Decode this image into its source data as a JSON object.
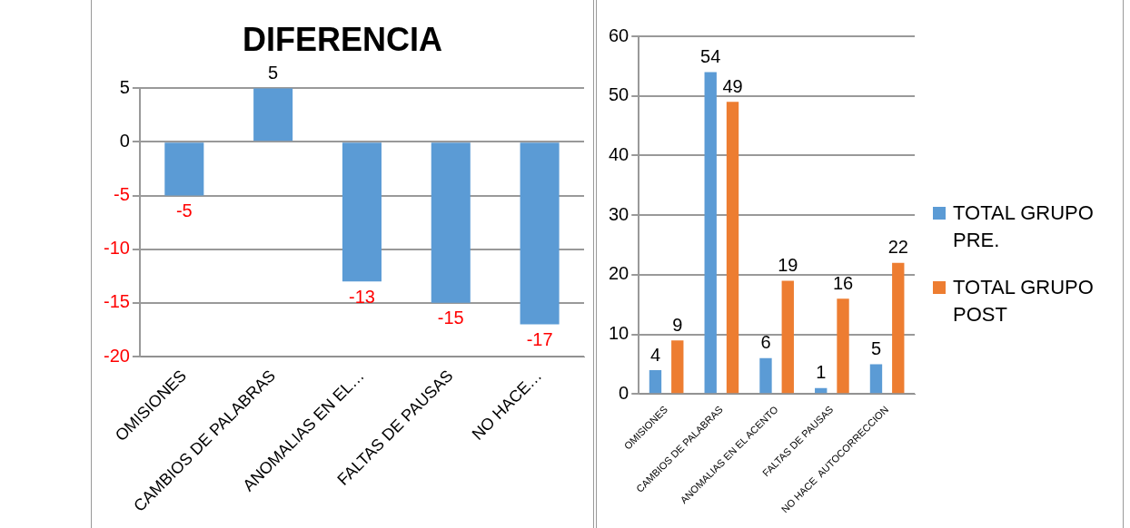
{
  "chart_data": [
    {
      "type": "bar",
      "title": "DIFERENCIA",
      "categories": [
        "OMISIONES",
        "CAMBIOS DE PALABRAS",
        "ANOMALIAS EN EL…",
        "FALTAS DE PAUSAS",
        "NO HACE…"
      ],
      "series": [
        {
          "color": "#5b9bd5",
          "values": [
            -5,
            5,
            -13,
            -15,
            -17
          ]
        }
      ],
      "ylim": [
        -20,
        5
      ],
      "yticks": [
        -20,
        -15,
        -10,
        -5,
        0,
        5
      ],
      "grid": "y",
      "legend": false,
      "data_labels": true
    },
    {
      "type": "bar",
      "categories": [
        "OMISIONES",
        "CAMBIOS DE PALABRAS",
        "ANOMALIAS EN EL ACENTO",
        "FALTAS DE PAUSAS",
        "NO HACE  AUTOCORRECCION"
      ],
      "series": [
        {
          "name": "TOTAL GRUPO PRE.",
          "color": "#5b9bd5",
          "values": [
            4,
            54,
            6,
            1,
            5
          ]
        },
        {
          "name": "TOTAL GRUPO POST",
          "color": "#ed7d31",
          "values": [
            9,
            49,
            19,
            16,
            22
          ]
        }
      ],
      "ylim": [
        0,
        60
      ],
      "yticks": [
        0,
        10,
        20,
        30,
        40,
        50,
        60
      ],
      "grid": "y",
      "legend": "right",
      "data_labels": true
    }
  ]
}
